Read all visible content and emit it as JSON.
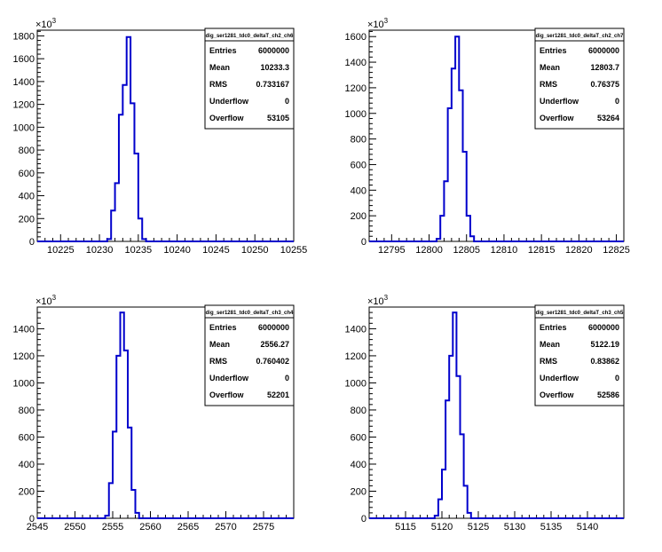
{
  "chart_data": [
    {
      "type": "histogram",
      "stats_title": "dig_ser1281_tdc0_deltaT_ch2_ch6",
      "xlim": [
        10222,
        10255
      ],
      "x_ticks": [
        10225,
        10230,
        10235,
        10240,
        10245,
        10250,
        10255
      ],
      "ylim": [
        0,
        1850
      ],
      "y_ticks": [
        0,
        200,
        400,
        600,
        800,
        1000,
        1200,
        1400,
        1600,
        1800
      ],
      "y_multiplier": "×10",
      "y_multiplier_exp": "3",
      "bin_width": 0.5,
      "bins": [
        {
          "x": 10231.0,
          "y": 20
        },
        {
          "x": 10231.5,
          "y": 270
        },
        {
          "x": 10232.0,
          "y": 510
        },
        {
          "x": 10232.5,
          "y": 1110
        },
        {
          "x": 10233.0,
          "y": 1370
        },
        {
          "x": 10233.5,
          "y": 1790
        },
        {
          "x": 10234.0,
          "y": 1210
        },
        {
          "x": 10234.5,
          "y": 770
        },
        {
          "x": 10235.0,
          "y": 200
        },
        {
          "x": 10235.5,
          "y": 20
        }
      ],
      "stats": [
        {
          "label": "Entries",
          "value": "6000000"
        },
        {
          "label": "Mean",
          "value": "10233.3"
        },
        {
          "label": "RMS",
          "value": "0.733167"
        },
        {
          "label": "Underflow",
          "value": "0"
        },
        {
          "label": "Overflow",
          "value": "53105"
        }
      ],
      "line_color": "#0000cc"
    },
    {
      "type": "histogram",
      "stats_title": "dig_ser1281_tdc0_deltaT_ch2_ch7",
      "xlim": [
        12792,
        12826
      ],
      "x_ticks": [
        12795,
        12800,
        12805,
        12810,
        12815,
        12820,
        12825
      ],
      "ylim": [
        0,
        1650
      ],
      "y_ticks": [
        0,
        200,
        400,
        600,
        800,
        1000,
        1200,
        1400,
        1600
      ],
      "y_multiplier": "×10",
      "y_multiplier_exp": "3",
      "bin_width": 0.5,
      "bins": [
        {
          "x": 12801.0,
          "y": 20
        },
        {
          "x": 12801.5,
          "y": 200
        },
        {
          "x": 12802.0,
          "y": 470
        },
        {
          "x": 12802.5,
          "y": 1040
        },
        {
          "x": 12803.0,
          "y": 1350
        },
        {
          "x": 12803.5,
          "y": 1600
        },
        {
          "x": 12804.0,
          "y": 1180
        },
        {
          "x": 12804.5,
          "y": 700
        },
        {
          "x": 12805.0,
          "y": 200
        },
        {
          "x": 12805.5,
          "y": 40
        }
      ],
      "stats": [
        {
          "label": "Entries",
          "value": "6000000"
        },
        {
          "label": "Mean",
          "value": "12803.7"
        },
        {
          "label": "RMS",
          "value": "0.76375"
        },
        {
          "label": "Underflow",
          "value": "0"
        },
        {
          "label": "Overflow",
          "value": "53264"
        }
      ],
      "line_color": "#0000cc"
    },
    {
      "type": "histogram",
      "stats_title": "dig_ser1281_tdc0_deltaT_ch3_ch4",
      "xlim": [
        2545,
        2579
      ],
      "x_ticks": [
        2545,
        2550,
        2555,
        2560,
        2565,
        2570,
        2575
      ],
      "ylim": [
        0,
        1560
      ],
      "y_ticks": [
        0,
        200,
        400,
        600,
        800,
        1000,
        1200,
        1400
      ],
      "y_multiplier": "×10",
      "y_multiplier_exp": "3",
      "bin_width": 0.5,
      "bins": [
        {
          "x": 2554.0,
          "y": 20
        },
        {
          "x": 2554.5,
          "y": 260
        },
        {
          "x": 2555.0,
          "y": 640
        },
        {
          "x": 2555.5,
          "y": 1200
        },
        {
          "x": 2556.0,
          "y": 1520
        },
        {
          "x": 2556.5,
          "y": 1240
        },
        {
          "x": 2557.0,
          "y": 670
        },
        {
          "x": 2557.5,
          "y": 210
        },
        {
          "x": 2558.0,
          "y": 40
        }
      ],
      "stats": [
        {
          "label": "Entries",
          "value": "6000000"
        },
        {
          "label": "Mean",
          "value": "2556.27"
        },
        {
          "label": "RMS",
          "value": "0.760402"
        },
        {
          "label": "Underflow",
          "value": "0"
        },
        {
          "label": "Overflow",
          "value": "52201"
        }
      ],
      "line_color": "#0000cc"
    },
    {
      "type": "histogram",
      "stats_title": "dig_ser1281_tdc0_deltaT_ch3_ch5",
      "xlim": [
        5110,
        5145
      ],
      "x_ticks": [
        5115,
        5120,
        5125,
        5130,
        5135,
        5140
      ],
      "ylim": [
        0,
        1560
      ],
      "y_ticks": [
        0,
        200,
        400,
        600,
        800,
        1000,
        1200,
        1400
      ],
      "y_multiplier": "×10",
      "y_multiplier_exp": "3",
      "bin_width": 0.5,
      "bins": [
        {
          "x": 5119.0,
          "y": 20
        },
        {
          "x": 5119.5,
          "y": 140
        },
        {
          "x": 5120.0,
          "y": 360
        },
        {
          "x": 5120.5,
          "y": 870
        },
        {
          "x": 5121.0,
          "y": 1200
        },
        {
          "x": 5121.5,
          "y": 1520
        },
        {
          "x": 5122.0,
          "y": 1050
        },
        {
          "x": 5122.5,
          "y": 620
        },
        {
          "x": 5123.0,
          "y": 240
        },
        {
          "x": 5123.5,
          "y": 40
        }
      ],
      "stats": [
        {
          "label": "Entries",
          "value": "6000000"
        },
        {
          "label": "Mean",
          "value": "5122.19"
        },
        {
          "label": "RMS",
          "value": "0.83862"
        },
        {
          "label": "Underflow",
          "value": "0"
        },
        {
          "label": "Overflow",
          "value": "52586"
        }
      ],
      "line_color": "#0000cc"
    }
  ]
}
